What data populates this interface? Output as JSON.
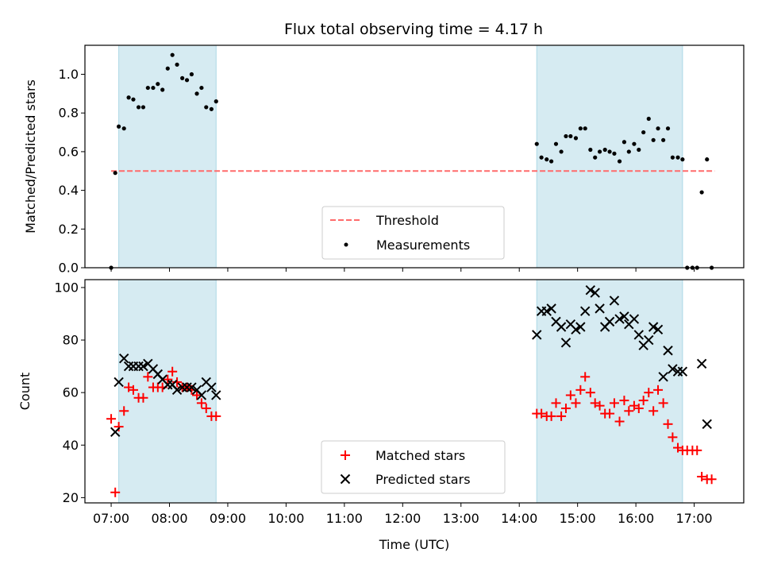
{
  "title": "Flux total observing time = 4.17 h",
  "colors": {
    "span": "#add8e6",
    "threshold": "#ff6b6b",
    "measurement": "#000000",
    "matched": "#ff0000",
    "predicted": "#000000"
  },
  "chart_data": [
    {
      "type": "scatter",
      "ylabel": "Matched/Predicted stars",
      "xlabel": "",
      "xlim": [
        6.55,
        17.85
      ],
      "ylim": [
        0,
        1.15
      ],
      "yticks": [
        0.0,
        0.2,
        0.4,
        0.6,
        0.8,
        1.0
      ],
      "ytick_labels": [
        "0.0",
        "0.2",
        "0.4",
        "0.6",
        "0.8",
        "1.0"
      ],
      "shaded_spans": [
        [
          7.13,
          8.8
        ],
        [
          14.3,
          16.8
        ]
      ],
      "threshold": {
        "name": "Threshold",
        "y": 0.5,
        "x": [
          7.0,
          17.35
        ]
      },
      "legend": {
        "placement": "lower center",
        "entries": [
          "Threshold",
          "Measurements"
        ]
      },
      "series": [
        {
          "name": "Measurements",
          "marker": "dot",
          "x": [
            7.0,
            7.07,
            7.13,
            7.22,
            7.3,
            7.38,
            7.47,
            7.55,
            7.63,
            7.72,
            7.8,
            7.88,
            7.97,
            8.05,
            8.13,
            8.22,
            8.3,
            8.38,
            8.47,
            8.55,
            8.63,
            8.72,
            8.8,
            14.3,
            14.38,
            14.47,
            14.55,
            14.63,
            14.72,
            14.8,
            14.88,
            14.97,
            15.05,
            15.13,
            15.22,
            15.3,
            15.38,
            15.47,
            15.55,
            15.63,
            15.72,
            15.8,
            15.88,
            15.97,
            16.05,
            16.13,
            16.22,
            16.3,
            16.38,
            16.47,
            16.55,
            16.63,
            16.72,
            16.8,
            16.88,
            16.97,
            17.05,
            17.13,
            17.22,
            17.3
          ],
          "y": [
            0.0,
            0.49,
            0.73,
            0.72,
            0.88,
            0.87,
            0.83,
            0.83,
            0.93,
            0.93,
            0.95,
            0.92,
            1.03,
            1.1,
            1.05,
            0.98,
            0.97,
            1.0,
            0.9,
            0.93,
            0.83,
            0.82,
            0.86,
            0.64,
            0.57,
            0.56,
            0.55,
            0.64,
            0.6,
            0.68,
            0.68,
            0.67,
            0.72,
            0.72,
            0.61,
            0.57,
            0.6,
            0.61,
            0.6,
            0.59,
            0.55,
            0.65,
            0.6,
            0.64,
            0.61,
            0.7,
            0.77,
            0.66,
            0.72,
            0.66,
            0.72,
            0.57,
            0.57,
            0.56,
            0.0,
            0.0,
            0.0,
            0.39,
            0.56,
            0.0
          ]
        }
      ]
    },
    {
      "type": "scatter",
      "ylabel": "Count",
      "xlabel": "Time (UTC)",
      "xlim": [
        6.55,
        17.85
      ],
      "ylim": [
        18,
        103
      ],
      "yticks": [
        20,
        40,
        60,
        80,
        100
      ],
      "ytick_labels": [
        "20",
        "40",
        "60",
        "80",
        "100"
      ],
      "xticks": [
        7,
        8,
        9,
        10,
        11,
        12,
        13,
        14,
        15,
        16,
        17
      ],
      "xtick_labels": [
        "07:00",
        "08:00",
        "09:00",
        "10:00",
        "11:00",
        "12:00",
        "13:00",
        "14:00",
        "15:00",
        "16:00",
        "17:00"
      ],
      "shaded_spans": [
        [
          7.13,
          8.8
        ],
        [
          14.3,
          16.8
        ]
      ],
      "legend": {
        "placement": "lower center",
        "entries": [
          "Matched stars",
          "Predicted stars"
        ]
      },
      "series": [
        {
          "name": "Matched stars",
          "marker": "plus",
          "x": [
            7.0,
            7.07,
            7.13,
            7.22,
            7.3,
            7.38,
            7.47,
            7.55,
            7.63,
            7.72,
            7.8,
            7.88,
            7.97,
            8.05,
            8.13,
            8.22,
            8.3,
            8.38,
            8.47,
            8.55,
            8.63,
            8.72,
            8.8,
            14.3,
            14.38,
            14.47,
            14.55,
            14.63,
            14.72,
            14.8,
            14.88,
            14.97,
            15.05,
            15.13,
            15.22,
            15.3,
            15.38,
            15.47,
            15.55,
            15.63,
            15.72,
            15.8,
            15.88,
            15.97,
            16.05,
            16.13,
            16.22,
            16.3,
            16.38,
            16.47,
            16.55,
            16.63,
            16.72,
            16.8,
            16.88,
            16.97,
            17.05,
            17.13,
            17.22,
            17.3
          ],
          "y": [
            50,
            22,
            47,
            53,
            62,
            61,
            58,
            58,
            66,
            62,
            62,
            62,
            65,
            68,
            64,
            62,
            62,
            61,
            59,
            56,
            54,
            51,
            51,
            52,
            52,
            51,
            51,
            56,
            51,
            54,
            59,
            56,
            61,
            66,
            60,
            56,
            55,
            52,
            52,
            56,
            49,
            57,
            53,
            55,
            54,
            57,
            60,
            53,
            61,
            56,
            48,
            43,
            39,
            38,
            38,
            38,
            38,
            28,
            27,
            27
          ]
        },
        {
          "name": "Predicted stars",
          "marker": "x",
          "x": [
            7.07,
            7.13,
            7.22,
            7.3,
            7.38,
            7.47,
            7.55,
            7.63,
            7.72,
            7.8,
            7.88,
            7.97,
            8.05,
            8.13,
            8.22,
            8.3,
            8.38,
            8.47,
            8.55,
            8.63,
            8.72,
            8.8,
            14.3,
            14.38,
            14.47,
            14.55,
            14.63,
            14.72,
            14.8,
            14.88,
            14.97,
            15.05,
            15.13,
            15.22,
            15.3,
            15.38,
            15.47,
            15.55,
            15.63,
            15.72,
            15.8,
            15.88,
            15.97,
            16.05,
            16.13,
            16.22,
            16.3,
            16.38,
            16.47,
            16.55,
            16.63,
            16.72,
            16.8,
            17.13,
            17.22
          ],
          "y": [
            45,
            64,
            73,
            70,
            70,
            70,
            70,
            71,
            69,
            67,
            65,
            63,
            63,
            61,
            62,
            62,
            62,
            61,
            59,
            64,
            62,
            59,
            82,
            91,
            91,
            92,
            87,
            85,
            79,
            86,
            84,
            85,
            91,
            99,
            98,
            92,
            85,
            87,
            95,
            88,
            89,
            86,
            88,
            82,
            78,
            80,
            85,
            84,
            66,
            76,
            69,
            68,
            68,
            71,
            48
          ]
        }
      ]
    }
  ]
}
